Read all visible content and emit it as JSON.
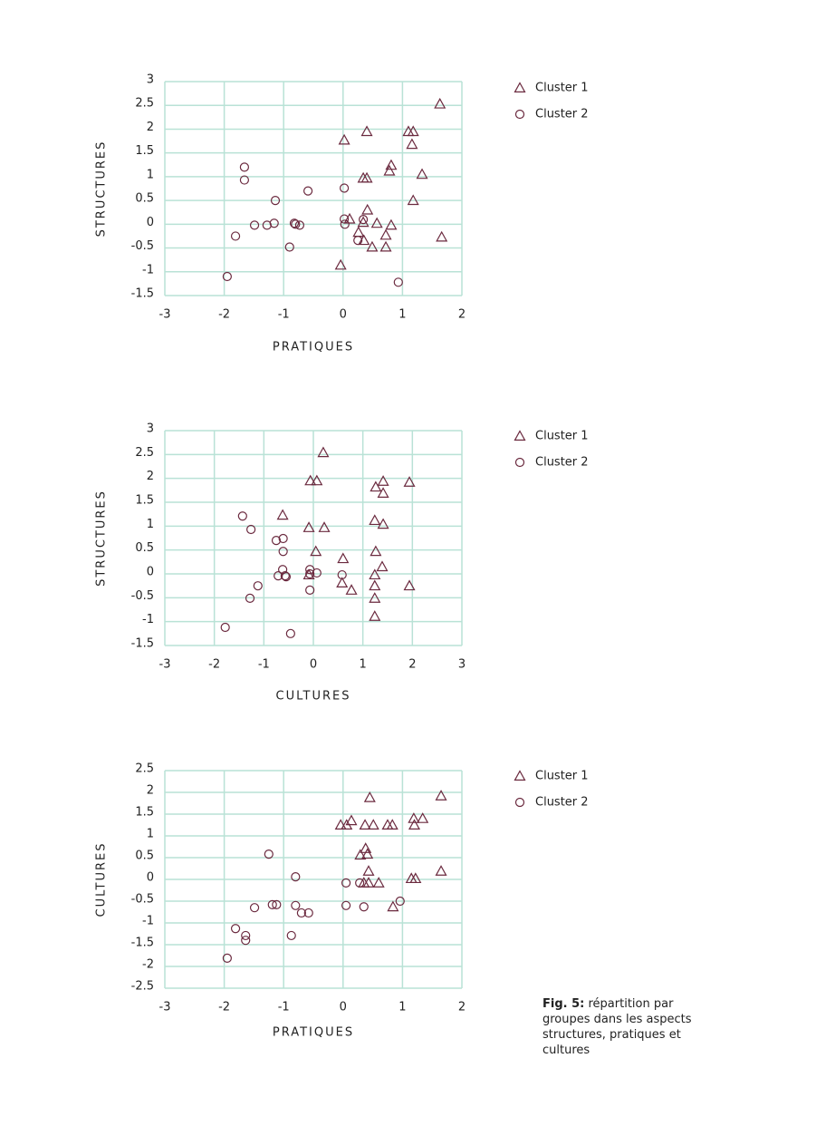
{
  "chart_data": [
    {
      "type": "scatter",
      "x_label": "PRATIQUES",
      "y_label": "STRUCTURES",
      "xlim": [
        -3,
        2
      ],
      "xticks": [
        -3,
        -2,
        -1,
        0,
        1,
        2
      ],
      "ylim": [
        -1.5,
        3
      ],
      "yticks": [
        -1.5,
        -1,
        -0.5,
        0,
        0.5,
        1,
        1.5,
        2,
        2.5,
        3
      ],
      "grid": true,
      "grid_color": "#b9e2d6",
      "series": [
        {
          "name": "Cluster 1",
          "color": "#6b2a3f",
          "marker": "triangle",
          "x": [
            1.63,
            1.1,
            1.18,
            0.4,
            0.02,
            1.16,
            0.81,
            0.78,
            1.33,
            0.34,
            0.4,
            1.18,
            0.41,
            0.11,
            0.34,
            0.57,
            0.81,
            0.26,
            0.72,
            0.35,
            0.49,
            0.72,
            1.66,
            -0.04
          ],
          "values": [
            2.53,
            1.95,
            1.95,
            1.95,
            1.77,
            1.68,
            1.24,
            1.12,
            1.05,
            0.97,
            0.97,
            0.5,
            0.3,
            0.11,
            0.04,
            0.02,
            -0.02,
            -0.17,
            -0.23,
            -0.34,
            -0.48,
            -0.48,
            -0.27,
            -0.86
          ]
        },
        {
          "name": "Cluster 2",
          "color": "#6b2a3f",
          "marker": "circle",
          "x": [
            -1.66,
            -1.66,
            -1.14,
            -0.59,
            0.02,
            0.02,
            0.03,
            0.34,
            -1.49,
            -1.28,
            -1.16,
            -0.82,
            -0.8,
            -0.73,
            -1.81,
            -0.9,
            0.25,
            -1.95,
            0.93
          ],
          "values": [
            1.2,
            0.93,
            0.5,
            0.7,
            0.76,
            0.11,
            0.0,
            0.1,
            -0.02,
            -0.02,
            0.02,
            0.02,
            0.0,
            -0.02,
            -0.25,
            -0.48,
            -0.34,
            -1.1,
            -1.22
          ]
        }
      ]
    },
    {
      "type": "scatter",
      "x_label": "CULTURES",
      "y_label": "STRUCTURES",
      "xlim": [
        -3,
        3
      ],
      "xticks": [
        -3,
        -2,
        -1,
        0,
        1,
        2,
        3
      ],
      "ylim": [
        -1.5,
        3
      ],
      "yticks": [
        -1.5,
        -1,
        -0.5,
        0,
        0.5,
        1,
        1.5,
        2,
        2.5,
        3
      ],
      "grid": true,
      "grid_color": "#b9e2d6",
      "series": [
        {
          "name": "Cluster 1",
          "color": "#6b2a3f",
          "marker": "triangle",
          "x": [
            0.2,
            -0.06,
            0.07,
            1.41,
            1.94,
            1.26,
            1.41,
            -0.62,
            1.24,
            1.41,
            -0.09,
            0.22,
            0.05,
            1.26,
            0.6,
            1.39,
            -0.09,
            1.24,
            0.58,
            0.77,
            1.24,
            1.24,
            1.94,
            1.24
          ],
          "values": [
            2.54,
            1.95,
            1.95,
            1.94,
            1.92,
            1.82,
            1.69,
            1.23,
            1.12,
            1.04,
            0.97,
            0.97,
            0.47,
            0.47,
            0.32,
            0.15,
            -0.02,
            -0.02,
            -0.19,
            -0.34,
            -0.25,
            -0.51,
            -0.25,
            -0.89
          ]
        },
        {
          "name": "Cluster 2",
          "color": "#6b2a3f",
          "marker": "circle",
          "x": [
            -1.43,
            -1.26,
            -0.75,
            -0.61,
            -0.61,
            -0.62,
            -0.07,
            0.07,
            0.58,
            -0.71,
            -0.57,
            -0.55,
            -0.07,
            -1.12,
            -1.28,
            -0.07,
            -1.78,
            -0.46
          ],
          "values": [
            1.21,
            0.93,
            0.7,
            0.74,
            0.47,
            0.09,
            0.09,
            0.02,
            -0.02,
            -0.04,
            -0.04,
            -0.06,
            0.0,
            -0.25,
            -0.51,
            -0.34,
            -1.12,
            -1.25
          ]
        }
      ]
    },
    {
      "type": "scatter",
      "x_label": "PRATIQUES",
      "y_label": "CULTURES",
      "xlim": [
        -3,
        2
      ],
      "xticks": [
        -3,
        -2,
        -1,
        0,
        1,
        2
      ],
      "ylim": [
        -2.5,
        2.5
      ],
      "yticks": [
        -2.5,
        -2,
        -1.5,
        -1,
        -0.5,
        0,
        0.5,
        1,
        1.5,
        2,
        2.5
      ],
      "grid": true,
      "grid_color": "#b9e2d6",
      "series": [
        {
          "name": "Cluster 1",
          "color": "#6b2a3f",
          "marker": "triangle",
          "x": [
            1.65,
            0.45,
            1.34,
            1.19,
            0.14,
            -0.04,
            0.06,
            0.37,
            0.51,
            0.75,
            0.83,
            1.2,
            0.38,
            0.41,
            0.29,
            0.43,
            1.65,
            1.15,
            1.22,
            0.35,
            0.43,
            0.6,
            0.84
          ],
          "values": [
            1.92,
            1.88,
            1.4,
            1.4,
            1.35,
            1.25,
            1.25,
            1.25,
            1.25,
            1.25,
            1.25,
            1.25,
            0.71,
            0.58,
            0.56,
            0.19,
            0.19,
            0.02,
            0.02,
            -0.08,
            -0.08,
            -0.08,
            -0.63
          ]
        },
        {
          "name": "Cluster 2",
          "color": "#6b2a3f",
          "marker": "circle",
          "x": [
            -1.25,
            -0.8,
            0.05,
            0.28,
            -1.19,
            -1.12,
            -1.49,
            -0.8,
            -0.7,
            -0.58,
            0.05,
            0.35,
            0.96,
            -1.81,
            -1.64,
            -1.64,
            -0.87,
            -1.95
          ],
          "values": [
            0.58,
            0.06,
            -0.08,
            -0.08,
            -0.58,
            -0.58,
            -0.65,
            -0.6,
            -0.77,
            -0.77,
            -0.6,
            -0.63,
            -0.5,
            -1.13,
            -1.29,
            -1.4,
            -1.29,
            -1.81
          ]
        }
      ]
    }
  ],
  "caption": {
    "label": "Fig. 5:",
    "text": "répartition par groupes dans les aspects structures, pratiques et cultures"
  }
}
